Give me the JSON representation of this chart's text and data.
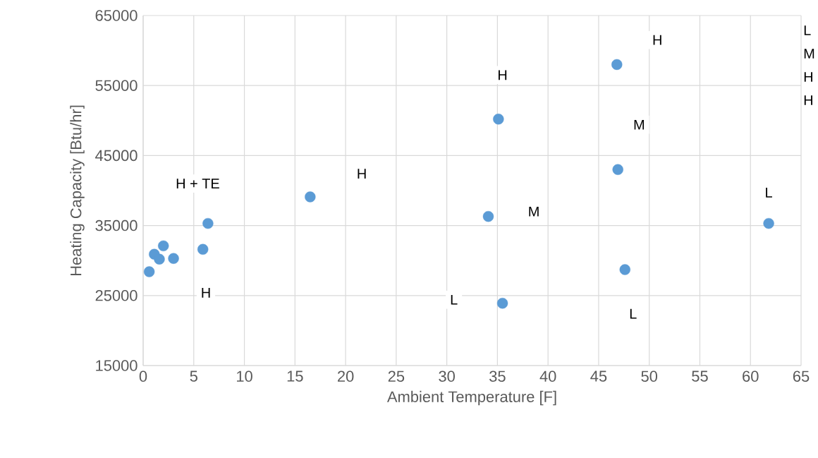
{
  "chart_data": {
    "type": "scatter",
    "xlabel": "Ambient Temperature [F]",
    "ylabel": "Heating Capacity [Btu/hr]",
    "x": [
      0.6,
      1.1,
      1.6,
      2.0,
      3.0,
      5.9,
      6.4,
      16.5,
      34.1,
      35.1,
      35.5,
      46.8,
      46.9,
      47.6,
      61.8
    ],
    "values": [
      28400,
      30900,
      30200,
      32100,
      30300,
      31600,
      35300,
      39100,
      36300,
      50200,
      23900,
      58000,
      43000,
      28700,
      35300
    ],
    "color": "#5b9bd5",
    "marker": "circle",
    "grid": true,
    "xlim": [
      0,
      65
    ],
    "xticks": [
      0,
      5,
      10,
      15,
      20,
      25,
      30,
      35,
      40,
      45,
      50,
      55,
      60,
      65
    ],
    "ylim": [
      15000,
      65000
    ],
    "yticks": [
      15000,
      25000,
      35000,
      45000,
      55000,
      65000
    ],
    "annotations": [
      "H + TE",
      {
        "text": "H",
        "x": 6.2,
        "y": 25400
      },
      {
        "text": "H",
        "x": 21.6,
        "y": 42400
      },
      {
        "text": "H",
        "x": 35.5,
        "y": 56500
      },
      {
        "text": "H",
        "x": 50.8,
        "y": 61500
      },
      {
        "text": "M",
        "x": 49.0,
        "y": 49400
      },
      {
        "text": "M",
        "x": 38.6,
        "y": 37000
      },
      {
        "text": "L",
        "x": 30.7,
        "y": 24400
      },
      {
        "text": "L",
        "x": 48.4,
        "y": 22400
      },
      {
        "text": "L",
        "x": 61.8,
        "y": 39700
      },
      "L",
      "M",
      "H",
      "H"
    ]
  }
}
